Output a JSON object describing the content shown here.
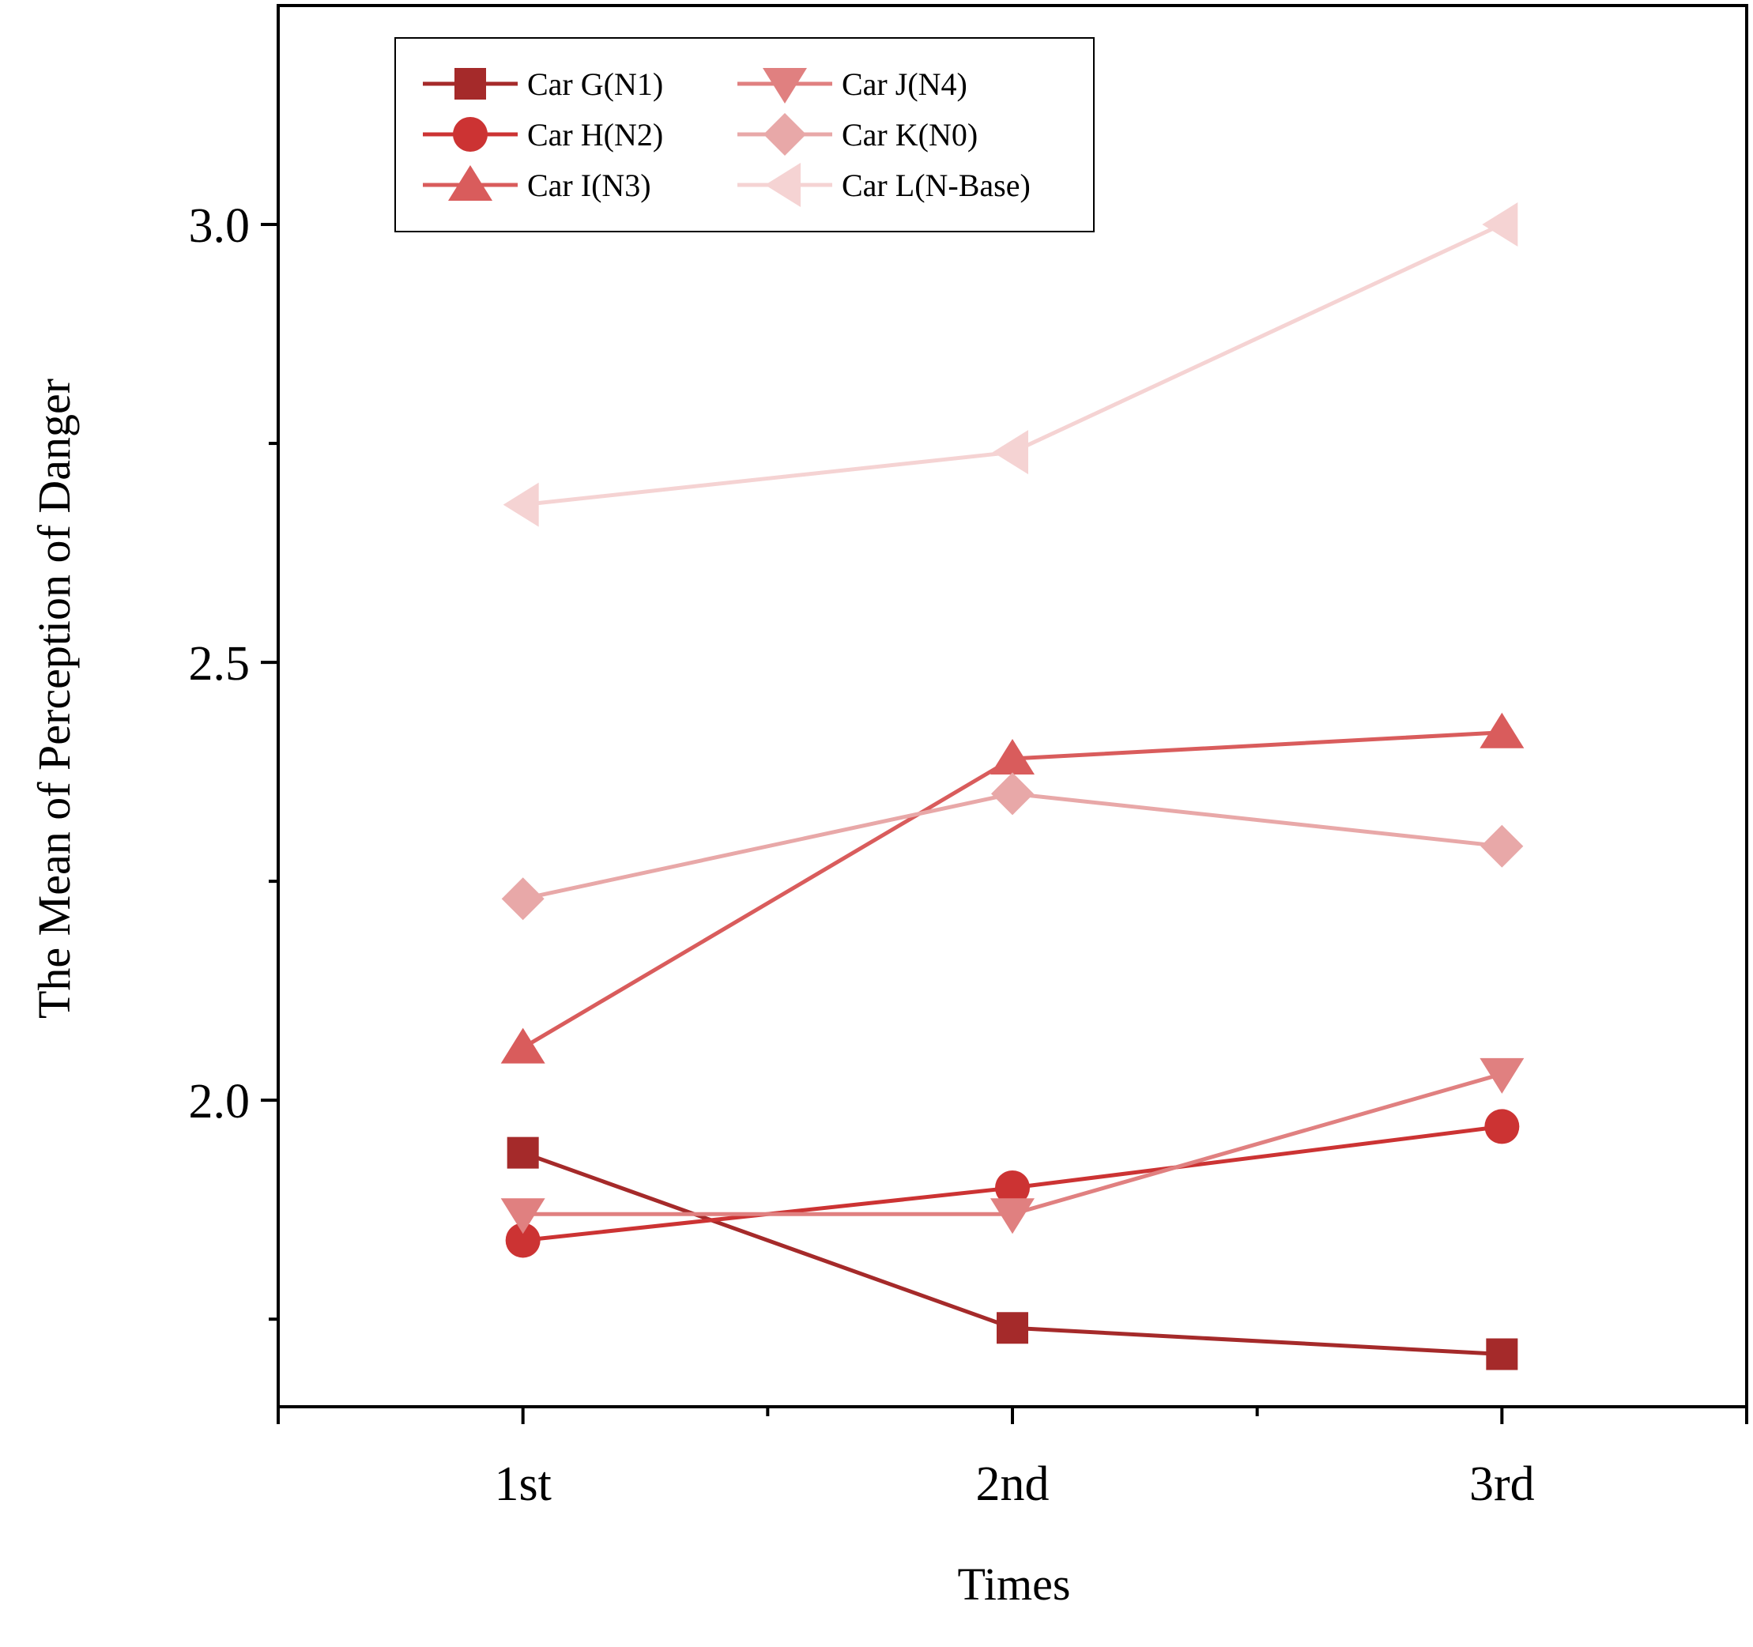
{
  "chart_data": {
    "type": "line",
    "title": "",
    "xlabel": "Times",
    "ylabel": "The Mean of Perception of Danger",
    "categories": [
      "1st",
      "2nd",
      "3rd"
    ],
    "x_range": [
      -0.5,
      2.5
    ],
    "ylim": [
      1.65,
      3.25
    ],
    "y_ticks": [
      {
        "value": 2.0,
        "label": "2.0"
      },
      {
        "value": 2.5,
        "label": "2.5"
      },
      {
        "value": 3.0,
        "label": "3.0"
      }
    ],
    "y_minor_ticks": [
      1.75,
      2.25,
      2.75
    ],
    "x_minor_ticks": [
      0.5,
      1.5
    ],
    "grid": false,
    "legend": {
      "position": "top-left",
      "columns": 2
    },
    "series": [
      {
        "name": "Car G(N1)",
        "marker": "square",
        "color": "#a52a2a",
        "values": [
          1.94,
          1.74,
          1.71
        ]
      },
      {
        "name": "Car H(N2)",
        "marker": "circle",
        "color": "#cc3333",
        "values": [
          1.84,
          1.9,
          1.97
        ]
      },
      {
        "name": "Car I(N3)",
        "marker": "triangle-up",
        "color": "#d95c5c",
        "values": [
          2.06,
          2.39,
          2.42
        ]
      },
      {
        "name": "Car J(N4)",
        "marker": "triangle-down",
        "color": "#e08080",
        "values": [
          1.87,
          1.87,
          2.03
        ]
      },
      {
        "name": "Car K(N0)",
        "marker": "diamond",
        "color": "#e8a8a8",
        "values": [
          2.23,
          2.35,
          2.29
        ]
      },
      {
        "name": "Car L(N-Base)",
        "marker": "triangle-left",
        "color": "#f5d3d3",
        "values": [
          2.68,
          2.74,
          3.0
        ]
      }
    ]
  }
}
